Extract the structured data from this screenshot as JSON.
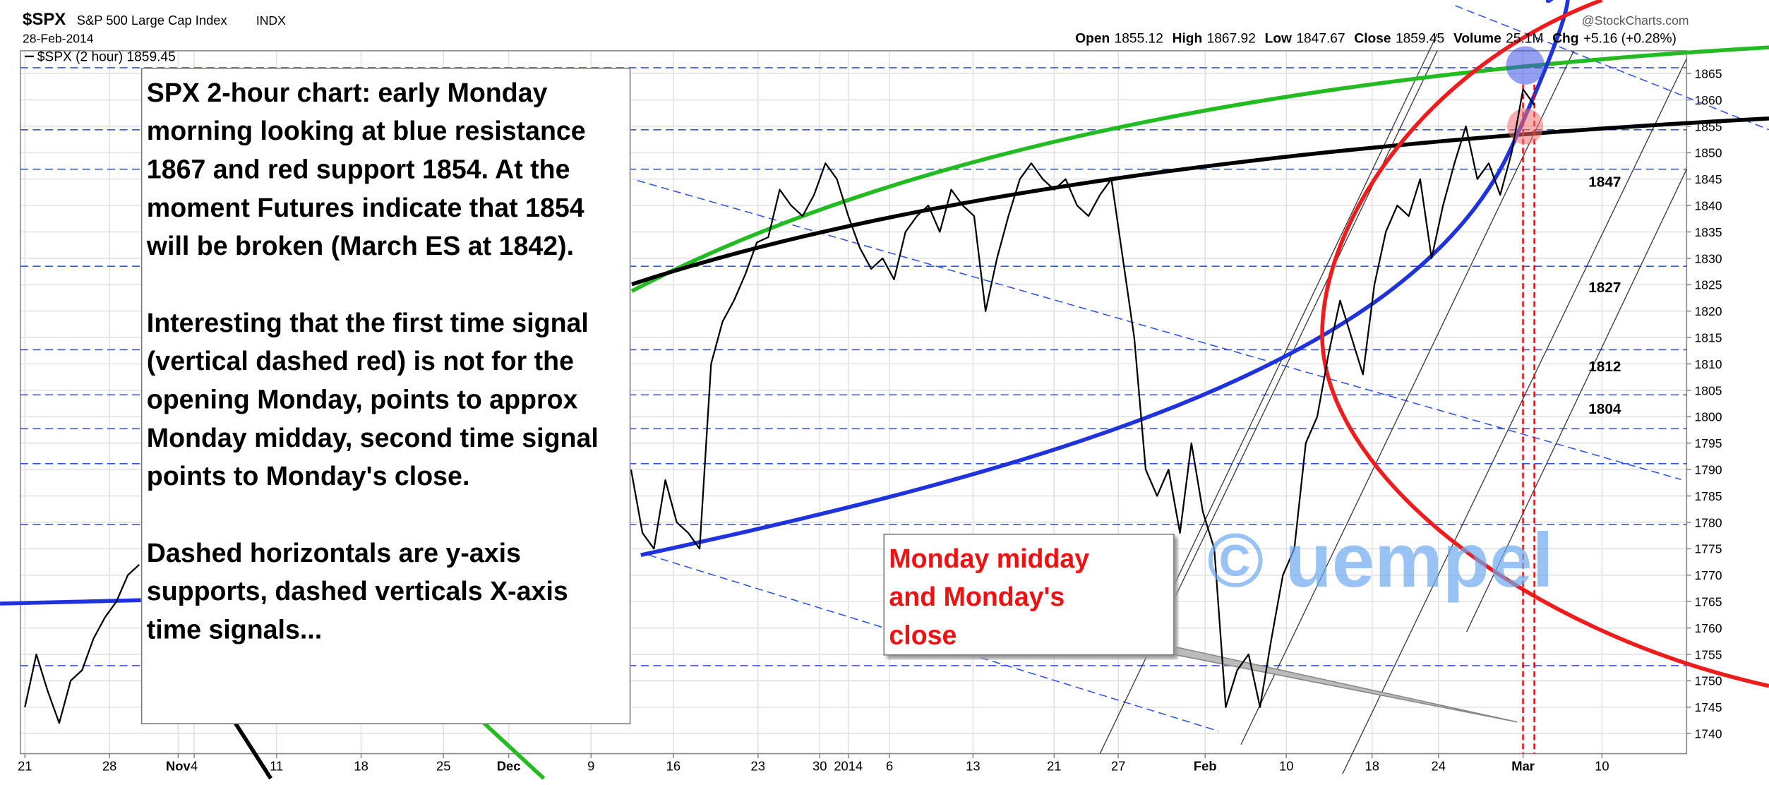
{
  "header": {
    "symbol": "$SPX",
    "name": "S&P 500 Large Cap Index",
    "exchange": "INDX",
    "date": "28-Feb-2014",
    "source": "@StockCharts.com",
    "quote": [
      {
        "label": "Open",
        "value": "1855.12"
      },
      {
        "label": "High",
        "value": "1867.92"
      },
      {
        "label": "Low",
        "value": "1847.67"
      },
      {
        "label": "Close",
        "value": "1859.45"
      },
      {
        "label": "Volume",
        "value": "25.1M"
      },
      {
        "label": "Chg",
        "value": "+5.16 (+0.28%)"
      }
    ]
  },
  "chart_data": {
    "type": "line",
    "x": [
      0,
      1,
      2,
      3,
      4,
      5,
      6,
      7,
      8,
      9,
      10,
      30,
      53,
      54,
      55,
      56,
      57,
      58,
      59,
      60,
      61,
      62,
      63,
      64,
      65,
      66,
      67,
      68,
      69,
      70,
      71,
      72,
      73,
      74,
      75,
      76,
      77,
      78,
      79,
      80,
      81,
      82,
      83,
      84,
      85,
      86,
      87,
      88,
      89,
      90,
      91,
      92,
      93,
      94,
      95,
      96,
      97,
      98,
      99,
      100,
      101,
      102,
      103,
      104,
      105,
      106,
      107,
      108,
      109,
      110,
      111,
      112,
      113,
      114,
      115,
      116,
      117,
      118,
      119,
      120,
      121,
      122,
      123,
      124,
      125,
      126,
      127,
      128,
      129,
      130,
      131,
      132
    ],
    "series": [
      {
        "name": "$SPX (2 hour) 1859.45",
        "color": "#000000",
        "values": [
          1745,
          1755,
          1748,
          1742,
          1750,
          1752,
          1758,
          1762,
          1765,
          1770,
          1772,
          null,
          1790,
          1778,
          1775,
          1788,
          1780,
          1778,
          1775,
          1810,
          1818,
          1822,
          1827,
          1833,
          1834,
          1843,
          1840,
          1838,
          1842,
          1848,
          1845,
          1838,
          1832,
          1828,
          1830,
          1826,
          1835,
          1838,
          1840,
          1835,
          1843,
          1840,
          1838,
          1820,
          1830,
          1838,
          1845,
          1848,
          1845,
          1843,
          1845,
          1840,
          1838,
          1842,
          1845,
          1830,
          1815,
          1790,
          1785,
          1790,
          1778,
          1795,
          1782,
          1775,
          1745,
          1752,
          1755,
          1745,
          1758,
          1770,
          1775,
          1795,
          1800,
          1812,
          1822,
          1815,
          1808,
          1825,
          1835,
          1840,
          1838,
          1845,
          1830,
          1840,
          1848,
          1855,
          1845,
          1848,
          1842,
          1850,
          1862,
          1859
        ]
      }
    ],
    "xlim": [
      -0.4,
      145.3
    ],
    "xticks": [
      {
        "value": 0,
        "label": "21"
      },
      {
        "value": 7.4,
        "label": "28"
      },
      {
        "value": 13.4,
        "label": "Nov"
      },
      {
        "value": 14.8,
        "label": "4"
      },
      {
        "value": 22,
        "label": "11"
      },
      {
        "value": 29.4,
        "label": "18"
      },
      {
        "value": 36.6,
        "label": "25"
      },
      {
        "value": 42.3,
        "label": "Dec"
      },
      {
        "value": 49.5,
        "label": "9"
      },
      {
        "value": 56.7,
        "label": "16"
      },
      {
        "value": 64.1,
        "label": "23"
      },
      {
        "value": 69.5,
        "label": "30"
      },
      {
        "value": 72,
        "label": "2014"
      },
      {
        "value": 75.6,
        "label": "6"
      },
      {
        "value": 82.9,
        "label": "13"
      },
      {
        "value": 90,
        "label": "21"
      },
      {
        "value": 95.6,
        "label": "27"
      },
      {
        "value": 103.2,
        "label": "Feb"
      },
      {
        "value": 110.3,
        "label": "10"
      },
      {
        "value": 117.8,
        "label": "18"
      },
      {
        "value": 123.6,
        "label": "24"
      },
      {
        "value": 131,
        "label": "Mar"
      },
      {
        "value": 137.9,
        "label": "10"
      }
    ],
    "ylim": [
      1736.2,
      1869.3
    ],
    "yticks": [
      1740,
      1745,
      1750,
      1755,
      1760,
      1765,
      1770,
      1775,
      1780,
      1785,
      1790,
      1795,
      1800,
      1805,
      1810,
      1815,
      1820,
      1825,
      1830,
      1835,
      1840,
      1845,
      1850,
      1855,
      1860,
      1865
    ],
    "grid": true,
    "level_labels": [
      1847,
      1827,
      1812,
      1804
    ],
    "notes": [
      "SPX 2-hour chart: early Monday morning looking at blue resistance 1867 and red support 1854. At the moment Futures indicate that 1854 will be broken (March ES at 1842).",
      "Interesting that the first time signal (vertical dashed red) is not for the opening Monday, points to approx Monday midday, second time signal points to Monday's close.",
      "Dashed horizontals are y-axis supports, dashed verticals X-axis time signals..."
    ],
    "callout": "Monday midday and Monday's close",
    "watermark": "© uempel"
  }
}
